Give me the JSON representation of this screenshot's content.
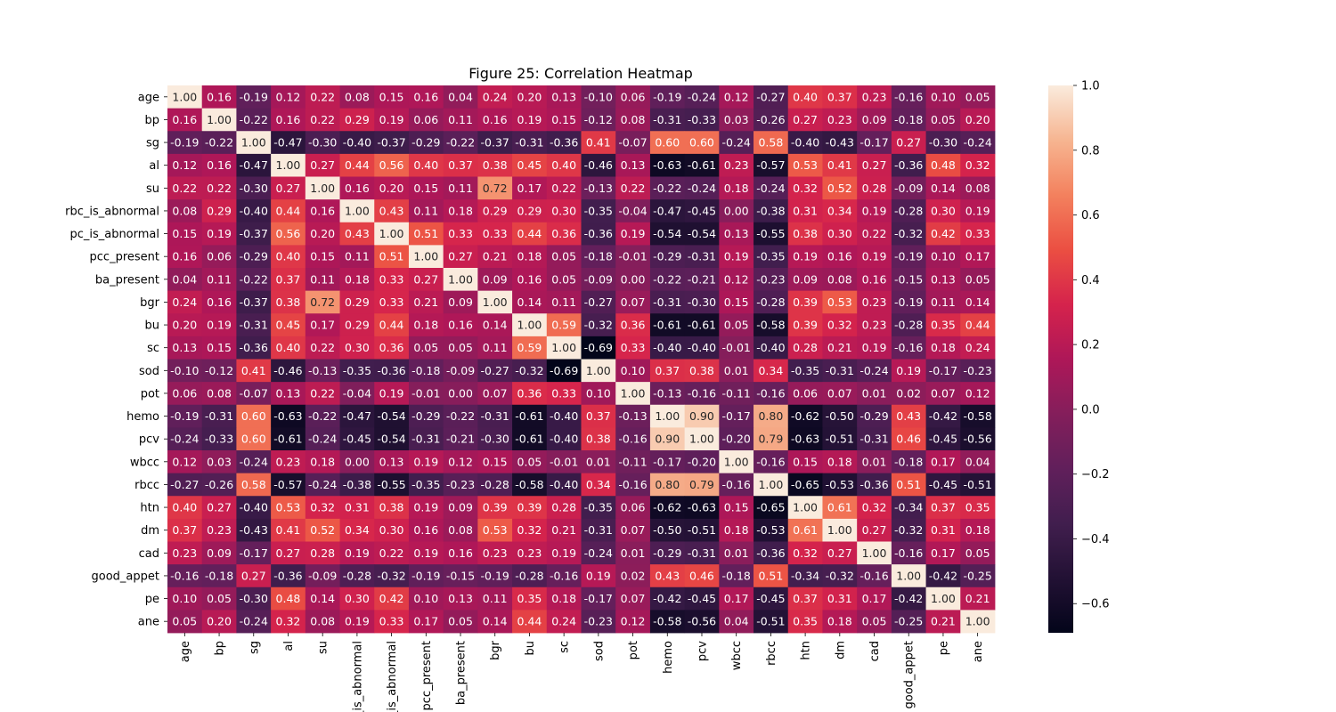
{
  "chart_data": {
    "type": "heatmap",
    "title": "Figure 25: Correlation Heatmap",
    "labels": [
      "age",
      "bp",
      "sg",
      "al",
      "su",
      "rbc_is_abnormal",
      "pc_is_abnormal",
      "pcc_present",
      "ba_present",
      "bgr",
      "bu",
      "sc",
      "sod",
      "pot",
      "hemo",
      "pcv",
      "wbcc",
      "rbcc",
      "htn",
      "dm",
      "cad",
      "good_appet",
      "pe",
      "ane"
    ],
    "values": [
      [
        1.0,
        0.16,
        -0.19,
        0.12,
        0.22,
        0.08,
        0.15,
        0.16,
        0.04,
        0.24,
        0.2,
        0.13,
        -0.1,
        0.06,
        -0.19,
        -0.24,
        0.12,
        -0.27,
        0.4,
        0.37,
        0.23,
        -0.16,
        0.1,
        0.05
      ],
      [
        0.16,
        1.0,
        -0.22,
        0.16,
        0.22,
        0.29,
        0.19,
        0.06,
        0.11,
        0.16,
        0.19,
        0.15,
        -0.12,
        0.08,
        -0.31,
        -0.33,
        0.03,
        -0.26,
        0.27,
        0.23,
        0.09,
        -0.18,
        0.05,
        0.2
      ],
      [
        -0.19,
        -0.22,
        1.0,
        -0.47,
        -0.3,
        -0.4,
        -0.37,
        -0.29,
        -0.22,
        -0.37,
        -0.31,
        -0.36,
        0.41,
        -0.07,
        0.6,
        0.6,
        -0.24,
        0.58,
        -0.4,
        -0.43,
        -0.17,
        0.27,
        -0.3,
        -0.24
      ],
      [
        0.12,
        0.16,
        -0.47,
        1.0,
        0.27,
        0.44,
        0.56,
        0.4,
        0.37,
        0.38,
        0.45,
        0.4,
        -0.46,
        0.13,
        -0.63,
        -0.61,
        0.23,
        -0.57,
        0.53,
        0.41,
        0.27,
        -0.36,
        0.48,
        0.32
      ],
      [
        0.22,
        0.22,
        -0.3,
        0.27,
        1.0,
        0.16,
        0.2,
        0.15,
        0.11,
        0.72,
        0.17,
        0.22,
        -0.13,
        0.22,
        -0.22,
        -0.24,
        0.18,
        -0.24,
        0.32,
        0.52,
        0.28,
        -0.09,
        0.14,
        0.08
      ],
      [
        0.08,
        0.29,
        -0.4,
        0.44,
        0.16,
        1.0,
        0.43,
        0.11,
        0.18,
        0.29,
        0.29,
        0.3,
        -0.35,
        -0.04,
        -0.47,
        -0.45,
        -0.0,
        -0.38,
        0.31,
        0.34,
        0.19,
        -0.28,
        0.3,
        0.19
      ],
      [
        0.15,
        0.19,
        -0.37,
        0.56,
        0.2,
        0.43,
        1.0,
        0.51,
        0.33,
        0.33,
        0.44,
        0.36,
        -0.36,
        0.19,
        -0.54,
        -0.54,
        0.13,
        -0.55,
        0.38,
        0.3,
        0.22,
        -0.32,
        0.42,
        0.33
      ],
      [
        0.16,
        0.06,
        -0.29,
        0.4,
        0.15,
        0.11,
        0.51,
        1.0,
        0.27,
        0.21,
        0.18,
        0.05,
        -0.18,
        -0.01,
        -0.29,
        -0.31,
        0.19,
        -0.35,
        0.19,
        0.16,
        0.19,
        -0.19,
        0.1,
        0.17
      ],
      [
        0.04,
        0.11,
        -0.22,
        0.37,
        0.11,
        0.18,
        0.33,
        0.27,
        1.0,
        0.09,
        0.16,
        0.05,
        -0.09,
        -0.0,
        -0.22,
        -0.21,
        0.12,
        -0.23,
        0.09,
        0.08,
        0.16,
        -0.15,
        0.13,
        0.05
      ],
      [
        0.24,
        0.16,
        -0.37,
        0.38,
        0.72,
        0.29,
        0.33,
        0.21,
        0.09,
        1.0,
        0.14,
        0.11,
        -0.27,
        0.07,
        -0.31,
        -0.3,
        0.15,
        -0.28,
        0.39,
        0.53,
        0.23,
        -0.19,
        0.11,
        0.14
      ],
      [
        0.2,
        0.19,
        -0.31,
        0.45,
        0.17,
        0.29,
        0.44,
        0.18,
        0.16,
        0.14,
        1.0,
        0.59,
        -0.32,
        0.36,
        -0.61,
        -0.61,
        0.05,
        -0.58,
        0.39,
        0.32,
        0.23,
        -0.28,
        0.35,
        0.44
      ],
      [
        0.13,
        0.15,
        -0.36,
        0.4,
        0.22,
        0.3,
        0.36,
        0.05,
        0.05,
        0.11,
        0.59,
        1.0,
        -0.69,
        0.33,
        -0.4,
        -0.4,
        -0.01,
        -0.4,
        0.28,
        0.21,
        0.19,
        -0.16,
        0.18,
        0.24
      ],
      [
        -0.1,
        -0.12,
        0.41,
        -0.46,
        -0.13,
        -0.35,
        -0.36,
        -0.18,
        -0.09,
        -0.27,
        -0.32,
        -0.69,
        1.0,
        0.1,
        0.37,
        0.38,
        0.01,
        0.34,
        -0.35,
        -0.31,
        -0.24,
        0.19,
        -0.17,
        -0.23
      ],
      [
        0.06,
        0.08,
        -0.07,
        0.13,
        0.22,
        -0.04,
        0.19,
        -0.01,
        -0.0,
        0.07,
        0.36,
        0.33,
        0.1,
        1.0,
        -0.13,
        -0.16,
        -0.11,
        -0.16,
        0.06,
        0.07,
        0.01,
        0.02,
        0.07,
        0.12
      ],
      [
        -0.19,
        -0.31,
        0.6,
        -0.63,
        -0.22,
        -0.47,
        -0.54,
        -0.29,
        -0.22,
        -0.31,
        -0.61,
        -0.4,
        0.37,
        -0.13,
        1.0,
        0.9,
        -0.17,
        0.8,
        -0.62,
        -0.5,
        -0.29,
        0.43,
        -0.42,
        -0.58
      ],
      [
        -0.24,
        -0.33,
        0.6,
        -0.61,
        -0.24,
        -0.45,
        -0.54,
        -0.31,
        -0.21,
        -0.3,
        -0.61,
        -0.4,
        0.38,
        -0.16,
        0.9,
        1.0,
        -0.2,
        0.79,
        -0.63,
        -0.51,
        -0.31,
        0.46,
        -0.45,
        -0.56
      ],
      [
        0.12,
        0.03,
        -0.24,
        0.23,
        0.18,
        -0.0,
        0.13,
        0.19,
        0.12,
        0.15,
        0.05,
        -0.01,
        0.01,
        -0.11,
        -0.17,
        -0.2,
        1.0,
        -0.16,
        0.15,
        0.18,
        0.01,
        -0.18,
        0.17,
        0.04
      ],
      [
        -0.27,
        -0.26,
        0.58,
        -0.57,
        -0.24,
        -0.38,
        -0.55,
        -0.35,
        -0.23,
        -0.28,
        -0.58,
        -0.4,
        0.34,
        -0.16,
        0.8,
        0.79,
        -0.16,
        1.0,
        -0.65,
        -0.53,
        -0.36,
        0.51,
        -0.45,
        -0.51
      ],
      [
        0.4,
        0.27,
        -0.4,
        0.53,
        0.32,
        0.31,
        0.38,
        0.19,
        0.09,
        0.39,
        0.39,
        0.28,
        -0.35,
        0.06,
        -0.62,
        -0.63,
        0.15,
        -0.65,
        1.0,
        0.61,
        0.32,
        -0.34,
        0.37,
        0.35
      ],
      [
        0.37,
        0.23,
        -0.43,
        0.41,
        0.52,
        0.34,
        0.3,
        0.16,
        0.08,
        0.53,
        0.32,
        0.21,
        -0.31,
        0.07,
        -0.5,
        -0.51,
        0.18,
        -0.53,
        0.61,
        1.0,
        0.27,
        -0.32,
        0.31,
        0.18
      ],
      [
        0.23,
        0.09,
        -0.17,
        0.27,
        0.28,
        0.19,
        0.22,
        0.19,
        0.16,
        0.23,
        0.23,
        0.19,
        -0.24,
        0.01,
        -0.29,
        -0.31,
        0.01,
        -0.36,
        0.32,
        0.27,
        1.0,
        -0.16,
        0.17,
        0.05
      ],
      [
        -0.16,
        -0.18,
        0.27,
        -0.36,
        -0.09,
        -0.28,
        -0.32,
        -0.19,
        -0.15,
        -0.19,
        -0.28,
        -0.16,
        0.19,
        0.02,
        0.43,
        0.46,
        -0.18,
        0.51,
        -0.34,
        -0.32,
        -0.16,
        1.0,
        -0.42,
        -0.25
      ],
      [
        0.1,
        0.05,
        -0.3,
        0.48,
        0.14,
        0.3,
        0.42,
        0.1,
        0.13,
        0.11,
        0.35,
        0.18,
        -0.17,
        0.07,
        -0.42,
        -0.45,
        0.17,
        -0.45,
        0.37,
        0.31,
        0.17,
        -0.42,
        1.0,
        0.21
      ],
      [
        0.05,
        0.2,
        -0.24,
        0.32,
        0.08,
        0.19,
        0.33,
        0.17,
        0.05,
        0.14,
        0.44,
        0.24,
        -0.23,
        0.12,
        -0.58,
        -0.56,
        0.04,
        -0.51,
        0.35,
        0.18,
        0.05,
        -0.25,
        0.21,
        1.0
      ]
    ],
    "value_format": "0.00",
    "colorbar": {
      "min": -0.69,
      "max": 1.0,
      "ticks": [
        1.0,
        0.8,
        0.6,
        0.4,
        0.2,
        0.0,
        -0.2,
        -0.4,
        -0.6
      ],
      "tick_labels": [
        "1.0",
        "0.8",
        "0.6",
        "0.4",
        "0.2",
        "0.0",
        "−0.2",
        "−0.4",
        "−0.6"
      ],
      "placement": "right"
    },
    "colormap": "rocket",
    "grid": false,
    "xlabel": "",
    "ylabel": ""
  }
}
